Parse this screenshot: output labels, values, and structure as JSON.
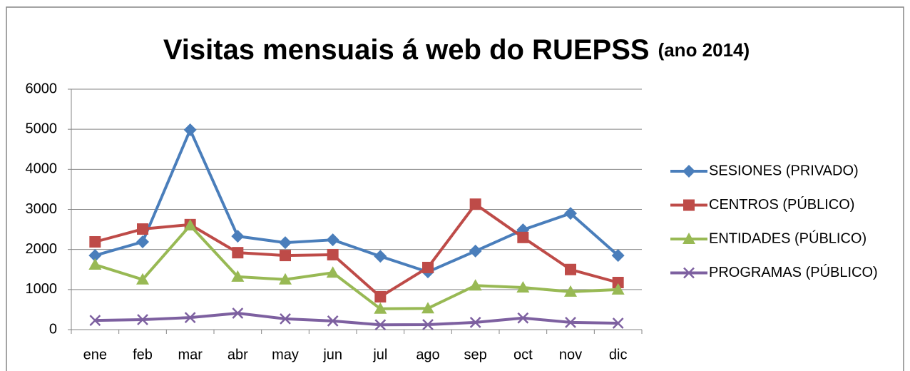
{
  "chart_data": {
    "type": "line",
    "title": "Visitas mensuais á web do RUEPSS",
    "subtitle": "(ano 2014)",
    "categories": [
      "ene",
      "feb",
      "mar",
      "abr",
      "may",
      "jun",
      "jul",
      "ago",
      "sep",
      "oct",
      "nov",
      "dic"
    ],
    "series": [
      {
        "name": "SESIONES (PRIVADO)",
        "color": "#4a7ebb",
        "marker": "diamond",
        "values": [
          1850,
          2190,
          4985,
          2330,
          2170,
          2240,
          1830,
          1440,
          1960,
          2490,
          2900,
          1850
        ]
      },
      {
        "name": "CENTROS (PÚBLICO)",
        "color": "#be4b48",
        "marker": "square",
        "values": [
          2190,
          2510,
          2620,
          1920,
          1850,
          1870,
          820,
          1550,
          3130,
          2300,
          1500,
          1175
        ]
      },
      {
        "name": "ENTIDADES (PÚBLICO)",
        "color": "#98b954",
        "marker": "triangle",
        "values": [
          1620,
          1250,
          2600,
          1320,
          1250,
          1420,
          520,
          530,
          1100,
          1050,
          945,
          1000
        ]
      },
      {
        "name": "PROGRAMAS (PÚBLICO)",
        "color": "#7d60a0",
        "marker": "x",
        "values": [
          230,
          250,
          300,
          410,
          270,
          215,
          120,
          125,
          180,
          290,
          180,
          160
        ]
      }
    ],
    "ylim": [
      0,
      6000
    ],
    "yticks": [
      0,
      1000,
      2000,
      3000,
      4000,
      5000,
      6000
    ],
    "grid": true,
    "legend": "right"
  }
}
